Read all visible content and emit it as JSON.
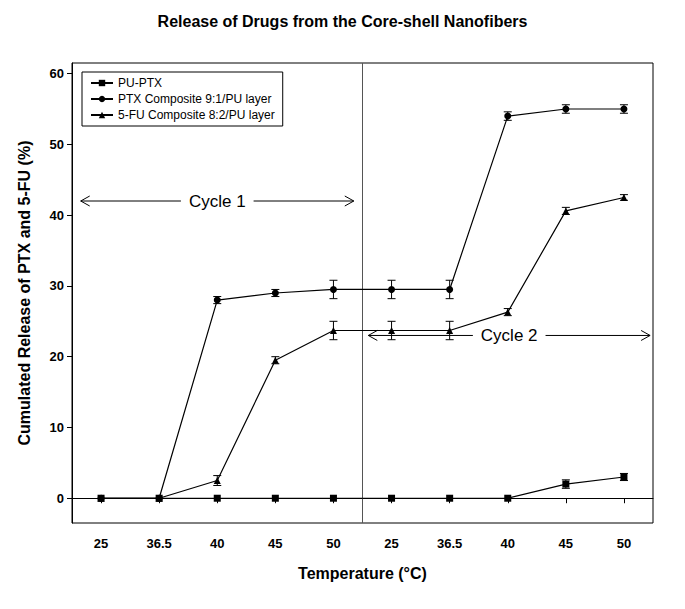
{
  "chart_data": {
    "type": "line",
    "title": "Release of Drugs from the Core-shell Nanofibers",
    "x_label": "Temperature (°C)",
    "y_label": "Cumulated Release of PTX and 5-FU (%)",
    "categories": [
      "25",
      "36.5",
      "40",
      "45",
      "50",
      "25",
      "36.5",
      "40",
      "45",
      "50"
    ],
    "annotations": [
      "Cycle 1",
      "Cycle 2"
    ],
    "series": [
      {
        "name": "PU-PTX",
        "color": "#000000",
        "marker": "square",
        "values": [
          0,
          0,
          0,
          0,
          0,
          0,
          0,
          0,
          2,
          3
        ],
        "errors": [
          0,
          0,
          0,
          0,
          0,
          0,
          0,
          0,
          0.6,
          0.5
        ]
      },
      {
        "name": "PTX Composite 9:1/PU layer",
        "color": "#000000",
        "marker": "circle",
        "values": [
          0,
          0,
          28,
          29,
          29.5,
          29.5,
          29.5,
          54,
          55,
          55
        ],
        "errors": [
          0,
          0,
          0.5,
          0.5,
          1.3,
          1.3,
          1.3,
          0.6,
          0.6,
          0.6
        ]
      },
      {
        "name": "5-FU Composite 8:2/PU layer",
        "color": "#000000",
        "marker": "triangle",
        "values": [
          0,
          0,
          2.5,
          19.5,
          23.7,
          23.7,
          23.7,
          26.3,
          40.6,
          42.5
        ],
        "errors": [
          0,
          0,
          0.7,
          0.5,
          1.3,
          1.3,
          1.3,
          0.5,
          0.5,
          0.4
        ]
      }
    ],
    "ylim": [
      -3.5,
      61.5
    ],
    "yticks": [
      0,
      10,
      20,
      30,
      40,
      50,
      60
    ],
    "grid": false,
    "legend": "top-left"
  }
}
